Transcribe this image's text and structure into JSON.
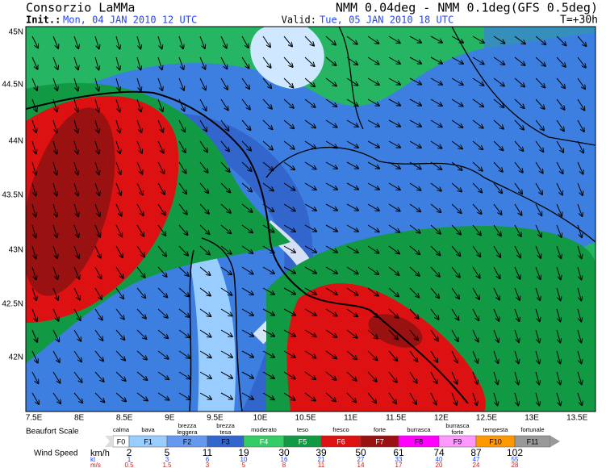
{
  "header": {
    "title": "Consorzio LaMMa",
    "init_label": "Init.:",
    "init_time": "Mon, 04 JAN 2010  12 UTC",
    "model": "NMM 0.04deg - NMM 0.1deg(GFS 0.5deg)",
    "valid_label": "Valid:",
    "valid_time": "Tue, 05 JAN 2010  18 UTC",
    "lead": "T=+30h"
  },
  "lat_labels": [
    "45N",
    "44.5N",
    "44N",
    "43.5N",
    "43N",
    "42.5N",
    "42N"
  ],
  "lon_labels": [
    "7.5E",
    "8E",
    "8.5E",
    "9E",
    "9.5E",
    "10E",
    "10.5E",
    "11E",
    "11.5E",
    "12E",
    "12.5E",
    "13E",
    "13.5E"
  ],
  "legend": {
    "title": "Beaufort Scale",
    "speed_label": "Wind Speed",
    "classes": [
      {
        "name": "calma",
        "code": "F0",
        "color": "#ffffff"
      },
      {
        "name": "bava",
        "code": "F1",
        "color": "#99ccff"
      },
      {
        "name": "brezza leggera",
        "code": "F2",
        "color": "#6699ee"
      },
      {
        "name": "brezza tesa",
        "code": "F3",
        "color": "#3366cc"
      },
      {
        "name": "moderato",
        "code": "F4",
        "color": "#33cc66"
      },
      {
        "name": "teso",
        "code": "F5",
        "color": "#119944"
      },
      {
        "name": "fresco",
        "code": "F6",
        "color": "#dd1111"
      },
      {
        "name": "forte",
        "code": "F7",
        "color": "#991111"
      },
      {
        "name": "burrasca",
        "code": "F8",
        "color": "#ff00ff"
      },
      {
        "name": "burrasca forte",
        "code": "F9",
        "color": "#ff99ff"
      },
      {
        "name": "tempesta",
        "code": "F10",
        "color": "#ff9900"
      },
      {
        "name": "fortunale",
        "code": "F11",
        "color": "#999999"
      }
    ],
    "units": {
      "kmh": "km/h",
      "kt": "kt",
      "ms": "m/s"
    },
    "kmh": [
      "2",
      "5",
      "11",
      "19",
      "30",
      "39",
      "50",
      "61",
      "74",
      "87",
      "102"
    ],
    "kt": [
      "1",
      "3",
      "6",
      "10",
      "16",
      "21",
      "27",
      "33",
      "40",
      "47",
      "55"
    ],
    "ms": [
      "0.5",
      "1.5",
      "3",
      "5",
      "8",
      "11",
      "14",
      "17",
      "20",
      "24",
      "28"
    ]
  }
}
